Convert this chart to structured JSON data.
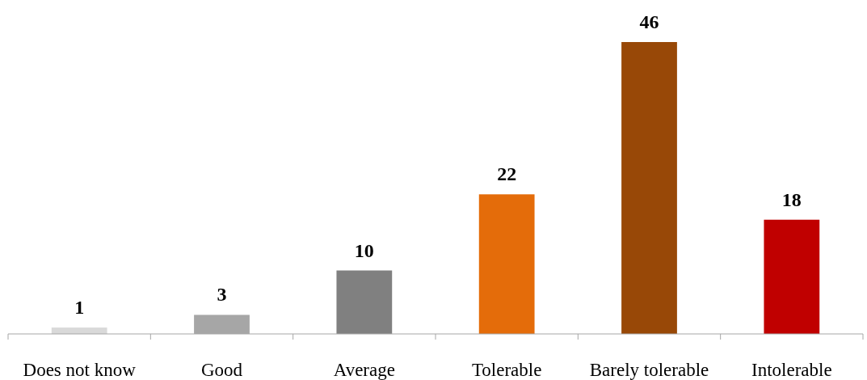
{
  "chart_data": {
    "type": "bar",
    "categories": [
      "Does not know",
      "Good",
      "Average",
      "Tolerable",
      "Barely tolerable",
      "Intolerable"
    ],
    "values": [
      1,
      3,
      10,
      22,
      46,
      18
    ],
    "colors": [
      "#d9d9d9",
      "#a6a6a6",
      "#808080",
      "#e46c0a",
      "#984807",
      "#c00000"
    ],
    "data_labels": true
  }
}
